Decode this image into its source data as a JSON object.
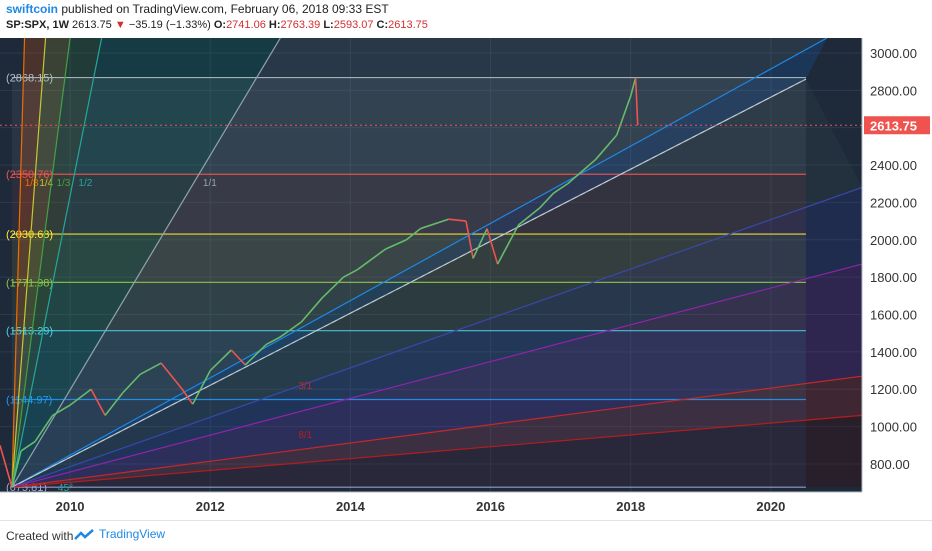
{
  "header": {
    "author": "swiftcoin",
    "published_text": "published on TradingView.com, February 06, 2018 09:33 EST",
    "symbol": "SP:SPX, 1W",
    "last": "2613.75",
    "arrow": "▼",
    "change": "−35.19 (−1.33%)",
    "open_label": "O:",
    "open": "2741.06",
    "high_label": "H:",
    "high": "2763.39",
    "low_label": "L:",
    "low": "2593.07",
    "close_label": "C:",
    "close": "2613.75"
  },
  "footer": {
    "created_with": "Created with",
    "brand": "TradingView"
  },
  "colors": {
    "background": "#1e2a3a",
    "axis_bg": "#ffffff",
    "up": "#66bb6a",
    "down": "#ef5350",
    "price_tag": "#ef5350"
  },
  "chart_data": {
    "type": "line",
    "title": "SP:SPX, 1W",
    "x_type": "year",
    "xlim": [
      2009.0,
      2021.3
    ],
    "ylim": [
      650,
      3080
    ],
    "x_ticks": [
      "2010",
      "2012",
      "2014",
      "2016",
      "2018",
      "2020"
    ],
    "y_ticks": [
      "800.00",
      "1000.00",
      "1200.00",
      "1400.00",
      "1600.00",
      "1800.00",
      "2000.00",
      "2200.00",
      "2400.00",
      "2600.00",
      "2800.00",
      "3000.00"
    ],
    "last_price_label": "2613.75",
    "series": [
      {
        "x": [
          2009.0,
          2009.17,
          2009.3,
          2009.5,
          2009.75,
          2010.0,
          2010.3,
          2010.5,
          2010.75,
          2011.0,
          2011.3,
          2011.6,
          2011.75,
          2012.0,
          2012.3,
          2012.5,
          2012.8,
          2013.0,
          2013.3,
          2013.6,
          2013.9,
          2014.1,
          2014.5,
          2014.8,
          2015.0,
          2015.4,
          2015.65,
          2015.75,
          2015.95,
          2016.1,
          2016.4,
          2016.7,
          2016.9,
          2017.1,
          2017.5,
          2017.8,
          2018.0,
          2018.07,
          2018.1
        ],
        "y": [
          900,
          676,
          870,
          920,
          1060,
          1115,
          1200,
          1060,
          1180,
          1280,
          1340,
          1200,
          1120,
          1300,
          1410,
          1330,
          1440,
          1480,
          1560,
          1690,
          1800,
          1840,
          1950,
          2000,
          2060,
          2110,
          2100,
          1900,
          2060,
          1870,
          2080,
          2170,
          2250,
          2300,
          2430,
          2560,
          2770,
          2868,
          2613
        ]
      }
    ],
    "horizontal_levels": [
      {
        "value": 2868.15,
        "label": "(2868.15)",
        "color": "#b0bec5"
      },
      {
        "value": 2350.76,
        "label": "(2350.76)",
        "color": "#ef5350"
      },
      {
        "value": 2030.68,
        "label": "(2030.68)",
        "color": "#ffeb3b"
      },
      {
        "value": 1771.98,
        "label": "(1771.98)",
        "color": "#8bc34a"
      },
      {
        "value": 1513.29,
        "label": "(1513.29)",
        "color": "#4dd0e1"
      },
      {
        "value": 1144.97,
        "label": "(1144.97)",
        "color": "#2196f3"
      },
      {
        "value": 675.81,
        "label": "(675.81)",
        "color": "#9fa8da"
      }
    ],
    "fan_lines": [
      {
        "label": "1/8",
        "x2": 2009.35,
        "y2": 3080,
        "color": "#ef6c00"
      },
      {
        "label": "1/4",
        "x2": 2009.65,
        "y2": 3080,
        "color": "#c0ca33"
      },
      {
        "label": "1/3",
        "x2": 2010.0,
        "y2": 3080,
        "color": "#43a047"
      },
      {
        "label": "1/2",
        "x2": 2010.45,
        "y2": 3080,
        "color": "#26a69a"
      },
      {
        "label": "1/1",
        "x2": 2013.0,
        "y2": 3080,
        "color": "#90a4ae"
      },
      {
        "label": "",
        "x2": 2020.8,
        "y2": 3080,
        "color": "#1e88e5"
      },
      {
        "label": "",
        "x2": 2020.5,
        "y2": 2860,
        "color": "#b0bec5"
      },
      {
        "label": "",
        "x2": 2021.3,
        "y2": 2280,
        "color": "#3949ab"
      },
      {
        "label": "",
        "x2": 2021.3,
        "y2": 1870,
        "color": "#8e24aa"
      },
      {
        "label": "3/1",
        "x2": 2021.3,
        "y2": 1270,
        "color": "#c62828"
      },
      {
        "label": "8/1",
        "x2": 2021.3,
        "y2": 1060,
        "color": "#b71c1c"
      }
    ],
    "angle_label": "45°"
  }
}
